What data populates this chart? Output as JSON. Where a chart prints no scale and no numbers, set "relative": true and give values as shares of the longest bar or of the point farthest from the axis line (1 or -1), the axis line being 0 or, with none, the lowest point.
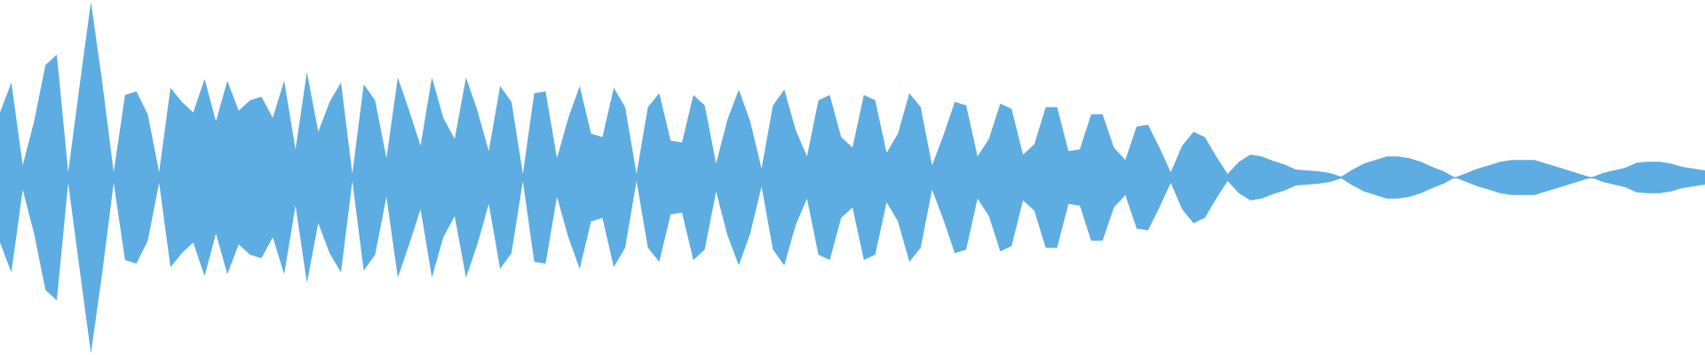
{
  "chart_data": {
    "type": "area",
    "relative": true,
    "ref_lines": [
      {
        "axis": "y",
        "value": 0,
        "color": "#5dade2",
        "line_style": "solid"
      }
    ],
    "categories": [
      null,
      null,
      null,
      null,
      null,
      null,
      null,
      null,
      null,
      null,
      null,
      null,
      null,
      null,
      null,
      null,
      null,
      null,
      null,
      null,
      null,
      null,
      null,
      null,
      null,
      null,
      null,
      null,
      null,
      null,
      null,
      null,
      null,
      null,
      null,
      null,
      null,
      null,
      null,
      null,
      null,
      null,
      null,
      null,
      null,
      null,
      null,
      null,
      null,
      null,
      null,
      null,
      null,
      null,
      null,
      null,
      null,
      null,
      null,
      null,
      null,
      null,
      null,
      null,
      null,
      null,
      null,
      null,
      null,
      null,
      null,
      null,
      null,
      null,
      null,
      null,
      null,
      null,
      null,
      null,
      null,
      null,
      null,
      null,
      null,
      null,
      null,
      null,
      null,
      null,
      null,
      null,
      null,
      null,
      null,
      null,
      null,
      null,
      null,
      null,
      null,
      null,
      null,
      null,
      null,
      null,
      null,
      null,
      null,
      null,
      null,
      null,
      null,
      null,
      null,
      null,
      null,
      null,
      null,
      null,
      null,
      null,
      null,
      null,
      null,
      null,
      null,
      null,
      null,
      null,
      null,
      null,
      null,
      null,
      null,
      null,
      null,
      null,
      null,
      null,
      null,
      null,
      null,
      null,
      null,
      null,
      null,
      null,
      null,
      null,
      null
    ],
    "series": [
      {
        "color": "#5dade2",
        "values": [
          0.37,
          0.54,
          0.07,
          0.32,
          0.64,
          0.7,
          0.03,
          0.52,
          1.0,
          0.54,
          0.03,
          0.47,
          0.49,
          0.36,
          0.03,
          0.51,
          0.43,
          0.37,
          0.56,
          0.32,
          0.55,
          0.38,
          0.44,
          0.46,
          0.34,
          0.55,
          0.16,
          0.6,
          0.26,
          0.43,
          0.54,
          0.02,
          0.53,
          0.44,
          0.11,
          0.57,
          0.38,
          0.18,
          0.57,
          0.34,
          0.22,
          0.57,
          0.38,
          0.15,
          0.52,
          0.43,
          0.02,
          0.48,
          0.49,
          0.11,
          0.34,
          0.52,
          0.25,
          0.23,
          0.51,
          0.4,
          0.02,
          0.4,
          0.48,
          0.21,
          0.2,
          0.47,
          0.41,
          0.08,
          0.33,
          0.5,
          0.32,
          0.05,
          0.41,
          0.5,
          0.27,
          0.12,
          0.44,
          0.47,
          0.23,
          0.17,
          0.47,
          0.44,
          0.14,
          0.25,
          0.48,
          0.4,
          0.07,
          0.24,
          0.43,
          0.41,
          0.12,
          0.22,
          0.42,
          0.39,
          0.13,
          0.19,
          0.4,
          0.4,
          0.15,
          0.16,
          0.36,
          0.36,
          0.17,
          0.1,
          0.29,
          0.3,
          0.17,
          0.03,
          0.18,
          0.26,
          0.23,
          0.12,
          0.02,
          0.09,
          0.13,
          0.12,
          0.095,
          0.075,
          0.045,
          0.04,
          0.035,
          0.025,
          0.005,
          0.045,
          0.08,
          0.1,
          0.12,
          0.12,
          0.11,
          0.09,
          0.06,
          0.035,
          0,
          0.025,
          0.05,
          0.07,
          0.09,
          0.1,
          0.1,
          0.1,
          0.08,
          0.06,
          0.04,
          0.02,
          0,
          0.025,
          0.04,
          0.055,
          0.085,
          0.09,
          0.09,
          0.08,
          0.06,
          0.05,
          0.04
        ]
      },
      {
        "color": "#5dade2",
        "values": [
          -0.37,
          -0.54,
          -0.07,
          -0.32,
          -0.64,
          -0.7,
          -0.03,
          -0.52,
          -1.0,
          -0.54,
          -0.03,
          -0.47,
          -0.49,
          -0.36,
          -0.03,
          -0.51,
          -0.43,
          -0.37,
          -0.56,
          -0.32,
          -0.55,
          -0.38,
          -0.44,
          -0.46,
          -0.34,
          -0.55,
          -0.16,
          -0.6,
          -0.26,
          -0.43,
          -0.54,
          -0.02,
          -0.53,
          -0.44,
          -0.11,
          -0.57,
          -0.38,
          -0.18,
          -0.57,
          -0.34,
          -0.22,
          -0.57,
          -0.38,
          -0.15,
          -0.52,
          -0.43,
          -0.02,
          -0.48,
          -0.49,
          -0.11,
          -0.34,
          -0.52,
          -0.25,
          -0.23,
          -0.51,
          -0.4,
          -0.02,
          -0.4,
          -0.48,
          -0.21,
          -0.2,
          -0.47,
          -0.41,
          -0.08,
          -0.33,
          -0.5,
          -0.32,
          -0.05,
          -0.41,
          -0.5,
          -0.27,
          -0.12,
          -0.44,
          -0.47,
          -0.23,
          -0.17,
          -0.47,
          -0.44,
          -0.14,
          -0.25,
          -0.48,
          -0.4,
          -0.07,
          -0.24,
          -0.43,
          -0.41,
          -0.12,
          -0.22,
          -0.42,
          -0.39,
          -0.13,
          -0.19,
          -0.4,
          -0.4,
          -0.15,
          -0.16,
          -0.36,
          -0.36,
          -0.17,
          -0.1,
          -0.29,
          -0.3,
          -0.17,
          -0.03,
          -0.18,
          -0.26,
          -0.23,
          -0.12,
          -0.02,
          -0.09,
          -0.13,
          -0.12,
          -0.095,
          -0.075,
          -0.045,
          -0.04,
          -0.035,
          -0.025,
          -0.005,
          -0.045,
          -0.08,
          -0.1,
          -0.12,
          -0.12,
          -0.11,
          -0.09,
          -0.06,
          -0.035,
          0,
          -0.025,
          -0.05,
          -0.07,
          -0.09,
          -0.1,
          -0.1,
          -0.1,
          -0.08,
          -0.06,
          -0.04,
          -0.02,
          0,
          -0.025,
          -0.04,
          -0.055,
          -0.085,
          -0.09,
          -0.09,
          -0.08,
          -0.06,
          -0.05,
          -0.04
        ]
      }
    ]
  }
}
